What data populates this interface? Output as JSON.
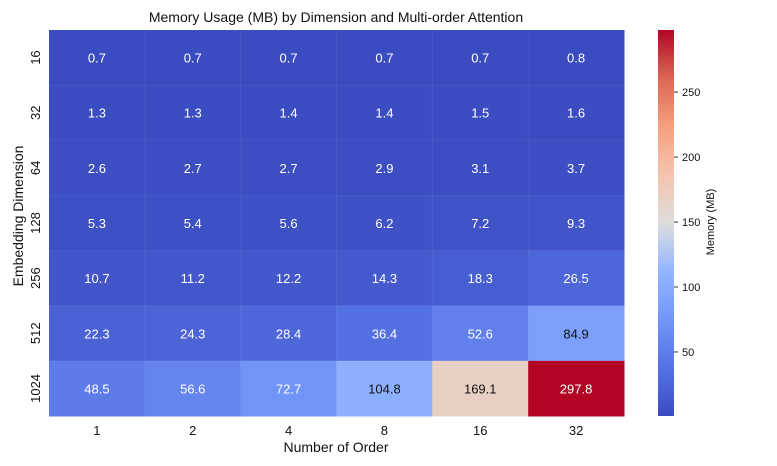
{
  "chart_data": {
    "type": "heatmap",
    "title": "Memory Usage (MB) by Dimension and Multi-order Attention",
    "xlabel": "Number of Order",
    "ylabel": "Embedding Dimension",
    "x_categories": [
      "1",
      "2",
      "4",
      "8",
      "16",
      "32"
    ],
    "y_categories": [
      "16",
      "32",
      "64",
      "128",
      "256",
      "512",
      "1024"
    ],
    "values": [
      [
        0.7,
        0.7,
        0.7,
        0.7,
        0.7,
        0.8
      ],
      [
        1.3,
        1.3,
        1.4,
        1.4,
        1.5,
        1.6
      ],
      [
        2.6,
        2.7,
        2.7,
        2.9,
        3.1,
        3.7
      ],
      [
        5.3,
        5.4,
        5.6,
        6.2,
        7.2,
        9.3
      ],
      [
        10.7,
        11.2,
        12.2,
        14.3,
        18.3,
        26.5
      ],
      [
        22.3,
        24.3,
        28.4,
        36.4,
        52.6,
        84.9
      ],
      [
        48.5,
        56.6,
        72.7,
        104.8,
        169.1,
        297.8
      ]
    ],
    "colormap": "coolwarm",
    "colorbar": {
      "label": "Memory (MB)",
      "min": 0.7,
      "max": 297.8,
      "ticks": [
        50,
        100,
        150,
        200,
        250
      ]
    },
    "colors": {
      "low": "#3b4cc0",
      "mid": "#dddddd",
      "high": "#b40426"
    }
  }
}
